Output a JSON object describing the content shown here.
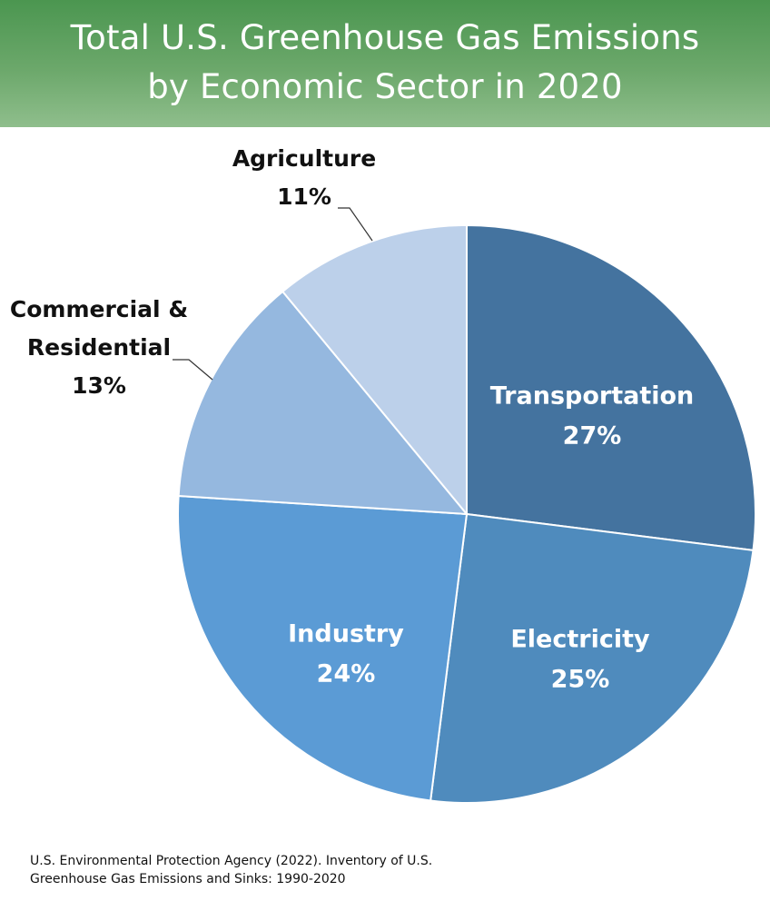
{
  "title": {
    "line1": "Total U.S. Greenhouse Gas Emissions",
    "line2": "by Economic Sector in 2020"
  },
  "colors": {
    "header_top": "#4b9650",
    "header_bottom": "#8fbe8c",
    "Transportation": "#44739f",
    "Electricity": "#4f8bbd",
    "Industry": "#5b9bd5",
    "Commercial & Residential": "#95b8df",
    "Agriculture": "#bcd0ea"
  },
  "chart_data": {
    "type": "pie",
    "title": "Total U.S. Greenhouse Gas Emissions by Economic Sector in 2020",
    "unit": "%",
    "start_angle_deg": 0,
    "direction": "clockwise",
    "slices": [
      {
        "name": "Transportation",
        "label_lines": [
          "Transportation"
        ],
        "value": 27,
        "value_label": "27%",
        "label_position": "inside"
      },
      {
        "name": "Electricity",
        "label_lines": [
          "Electricity"
        ],
        "value": 25,
        "value_label": "25%",
        "label_position": "inside"
      },
      {
        "name": "Industry",
        "label_lines": [
          "Industry"
        ],
        "value": 24,
        "value_label": "24%",
        "label_position": "inside"
      },
      {
        "name": "Commercial & Residential",
        "label_lines": [
          "Commercial &",
          "Residential"
        ],
        "value": 13,
        "value_label": "13%",
        "label_position": "outside"
      },
      {
        "name": "Agriculture",
        "label_lines": [
          "Agriculture"
        ],
        "value": 11,
        "value_label": "11%",
        "label_position": "outside"
      }
    ]
  },
  "source": {
    "line1": "U.S. Environmental Protection Agency (2022). Inventory of U.S.",
    "line2": "Greenhouse Gas Emissions and Sinks: 1990-2020"
  }
}
